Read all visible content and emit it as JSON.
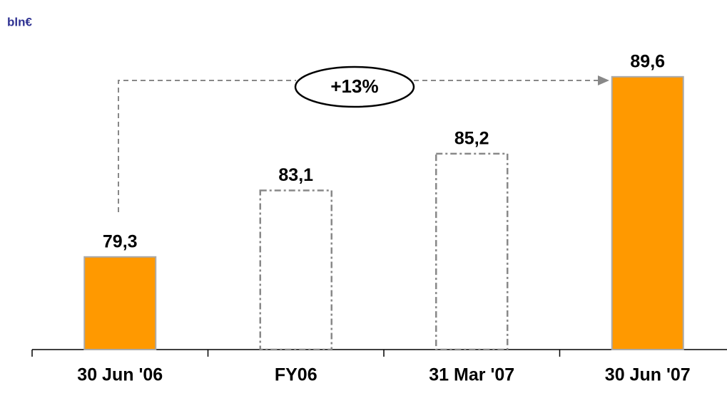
{
  "chart_data": {
    "type": "bar",
    "subtitle": "bln€",
    "categories": [
      "30 Jun '06",
      "FY06",
      "31 Mar '07",
      "30 Jun '07"
    ],
    "values": [
      79.3,
      83.1,
      85.2,
      89.6
    ],
    "value_labels": [
      "79,3",
      "83,1",
      "85,2",
      "89,6"
    ],
    "bar_styles": [
      "solid",
      "dashed",
      "dashed",
      "solid"
    ],
    "color": "#ff9900",
    "ylim": [
      74,
      90
    ],
    "annotation": "+13%"
  }
}
